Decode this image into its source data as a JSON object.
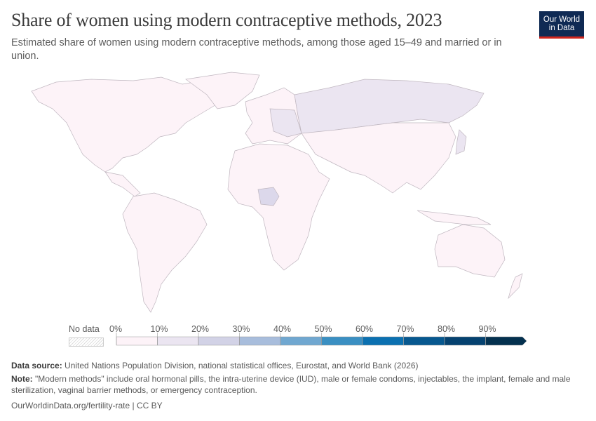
{
  "header": {
    "title": "Share of women using modern contraceptive methods, 2023",
    "subtitle": "Estimated share of women using modern contraceptive methods, among those aged 15–49 and married or in union.",
    "logo": "Our World in Data"
  },
  "legend": {
    "no_data_label": "No data",
    "ticks": [
      "0%",
      "10%",
      "20%",
      "30%",
      "40%",
      "50%",
      "60%",
      "70%",
      "80%",
      "90%"
    ],
    "bin_colors": [
      "#fdf3f8",
      "#ebe5f1",
      "#d2d2e6",
      "#a8bddc",
      "#70a7d0",
      "#3a8fc2",
      "#0b70b0",
      "#07588f",
      "#054270",
      "#04314f"
    ]
  },
  "map_colors": {
    "low": "#fdf3f8",
    "mid": "#ebe5f1",
    "nigeria": "#dcd8eb",
    "border": "#bfb6bf"
  },
  "footer": {
    "source_label": "Data source:",
    "source_text": "United Nations Population Division, national statistical offices, Eurostat, and World Bank (2026)",
    "note_label": "Note:",
    "note_text": "\"Modern methods\" include oral hormonal pills, the intra-uterine device (IUD), male or female condoms, injectables, the implant, female and male sterilization, vaginal barrier methods, or emergency contraception.",
    "url": "OurWorldinData.org/fertility-rate | CC BY"
  }
}
